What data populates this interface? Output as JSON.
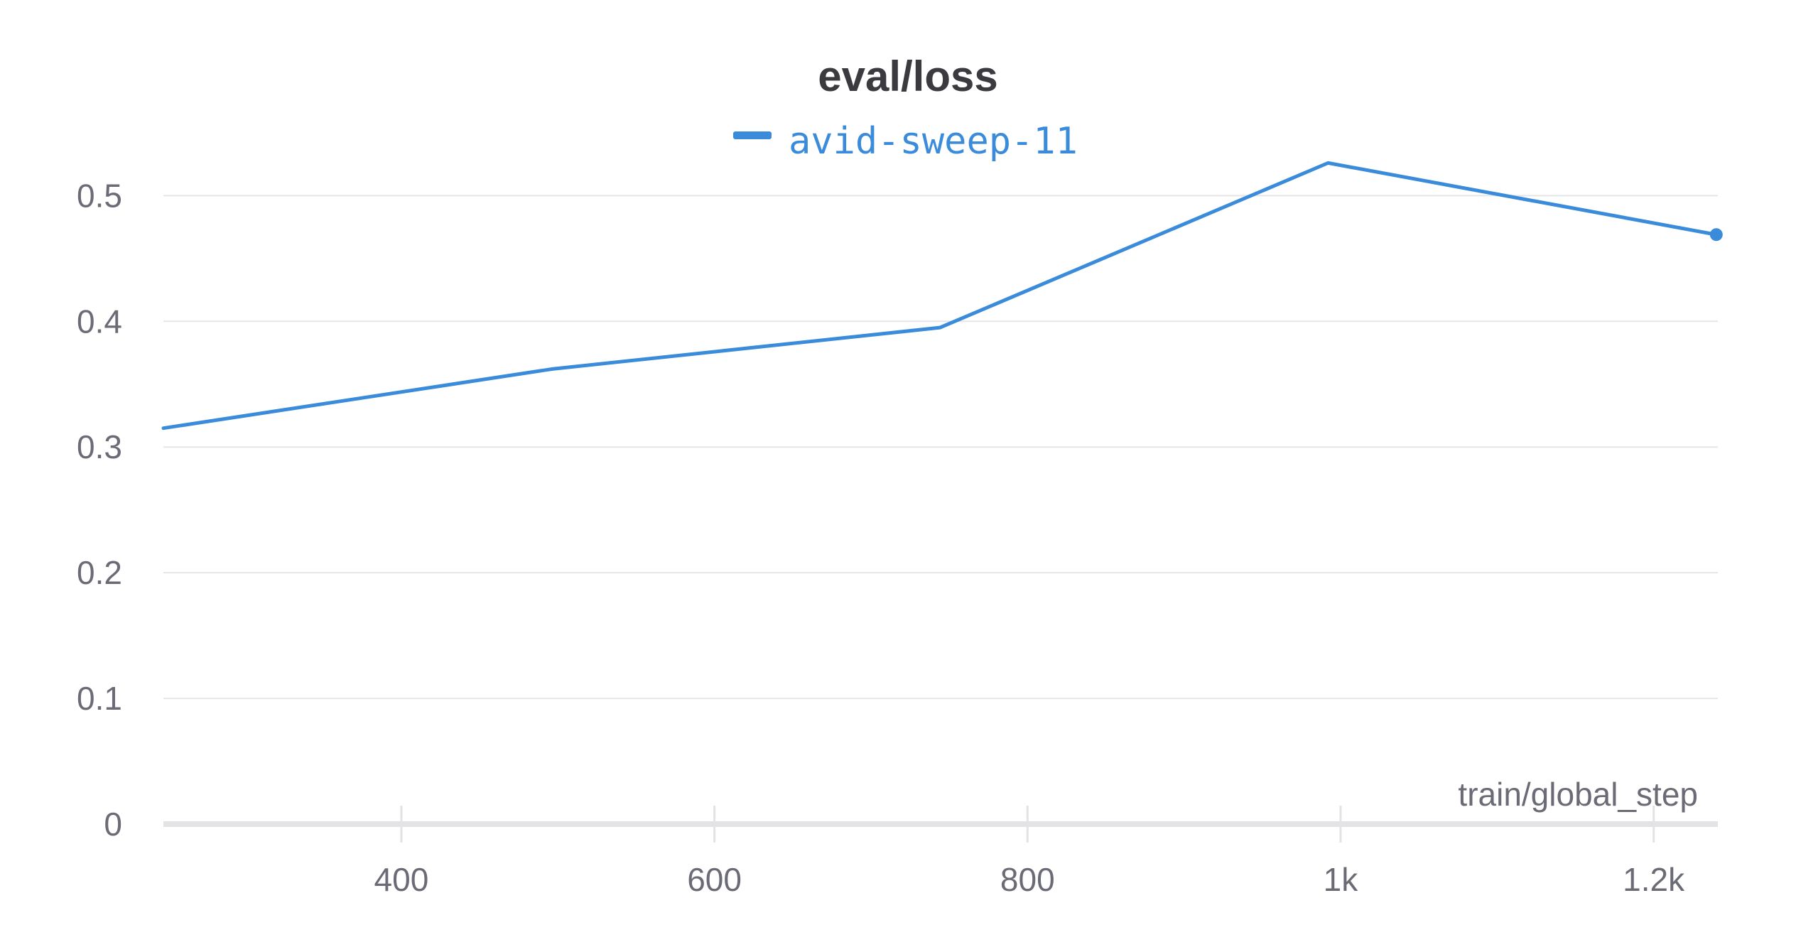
{
  "chart_data": {
    "type": "line",
    "title": "eval/loss",
    "xlabel": "train/global_step",
    "ylabel": "",
    "xlim": [
      248,
      1241
    ],
    "ylim": [
      0,
      0.52
    ],
    "xticks": [
      400,
      600,
      800,
      1000,
      1200
    ],
    "xtick_labels": [
      "400",
      "600",
      "800",
      "1k",
      "1.2k"
    ],
    "yticks": [
      0,
      0.1,
      0.2,
      0.3,
      0.4,
      0.5
    ],
    "ytick_labels": [
      "0",
      "0.1",
      "0.2",
      "0.3",
      "0.4",
      "0.5"
    ],
    "grid": true,
    "legend_position": "top-center",
    "series": [
      {
        "name": "avid-sweep-11",
        "color": "#3a8cdb",
        "x": [
          248,
          496,
          744,
          992,
          1240
        ],
        "y": [
          0.315,
          0.362,
          0.395,
          0.526,
          0.469
        ]
      }
    ]
  }
}
